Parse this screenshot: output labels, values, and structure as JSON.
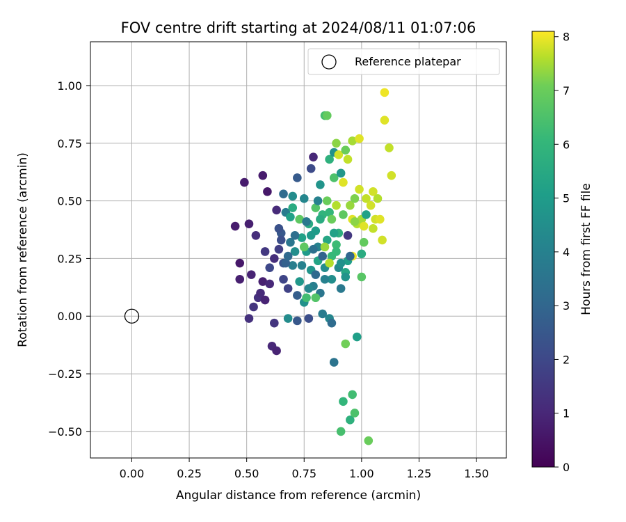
{
  "chart_data": {
    "type": "scatter",
    "title": "FOV centre drift starting at 2024/08/11 01:07:06",
    "xlabel": "Angular distance from reference (arcmin)",
    "ylabel": "Rotation from reference (arcmin)",
    "xlim": [
      -0.18,
      1.63
    ],
    "ylim": [
      -0.615,
      1.19
    ],
    "xticks": [
      0.0,
      0.25,
      0.5,
      0.75,
      1.0,
      1.25,
      1.5
    ],
    "yticks": [
      -0.5,
      -0.25,
      0.0,
      0.25,
      0.5,
      0.75,
      1.0
    ],
    "xtick_labels": [
      "0.00",
      "0.25",
      "0.50",
      "0.75",
      "1.00",
      "1.25",
      "1.50"
    ],
    "ytick_labels": [
      "−0.50",
      "−0.25",
      "0.00",
      "0.25",
      "0.50",
      "0.75",
      "1.00"
    ],
    "grid": true,
    "legend": {
      "position": "top-right",
      "label": "Reference platepar"
    },
    "reference_point": {
      "x": 0.0,
      "y": 0.0
    },
    "colorbar": {
      "label": "Hours from first FF file",
      "colormap": "viridis",
      "range": [
        0,
        8.1
      ],
      "ticks": [
        0,
        1,
        2,
        3,
        4,
        5,
        6,
        7,
        8
      ],
      "tick_labels": [
        "0",
        "1",
        "2",
        "3",
        "4",
        "5",
        "6",
        "7",
        "8"
      ]
    },
    "points": [
      [
        0.45,
        0.39,
        0.7
      ],
      [
        0.47,
        0.23,
        0.6
      ],
      [
        0.47,
        0.16,
        0.8
      ],
      [
        0.49,
        0.58,
        0.7
      ],
      [
        0.51,
        0.4,
        0.8
      ],
      [
        0.51,
        -0.01,
        1.3
      ],
      [
        0.52,
        0.18,
        0.9
      ],
      [
        0.53,
        0.04,
        1.4
      ],
      [
        0.54,
        0.35,
        1.2
      ],
      [
        0.55,
        0.08,
        1.3
      ],
      [
        0.56,
        0.1,
        1.1
      ],
      [
        0.57,
        0.61,
        0.7
      ],
      [
        0.57,
        0.15,
        0.8
      ],
      [
        0.58,
        0.07,
        0.9
      ],
      [
        0.58,
        0.28,
        1.5
      ],
      [
        0.59,
        0.54,
        0.6
      ],
      [
        0.6,
        0.14,
        1.0
      ],
      [
        0.61,
        -0.13,
        1.0
      ],
      [
        0.62,
        -0.03,
        1.4
      ],
      [
        0.63,
        -0.15,
        0.9
      ],
      [
        0.63,
        0.46,
        1.1
      ],
      [
        0.64,
        0.29,
        1.7
      ],
      [
        0.65,
        0.36,
        2.5
      ],
      [
        0.66,
        0.53,
        3.2
      ],
      [
        0.66,
        0.23,
        2.4
      ],
      [
        0.67,
        0.45,
        3.8
      ],
      [
        0.68,
        -0.01,
        4.4
      ],
      [
        0.68,
        0.12,
        1.8
      ],
      [
        0.69,
        0.32,
        3.6
      ],
      [
        0.7,
        0.47,
        5.6
      ],
      [
        0.7,
        0.22,
        3.9
      ],
      [
        0.71,
        0.28,
        4.5
      ],
      [
        0.72,
        0.6,
        2.6
      ],
      [
        0.72,
        -0.02,
        2.5
      ],
      [
        0.73,
        0.42,
        6.8
      ],
      [
        0.73,
        0.15,
        4.8
      ],
      [
        0.74,
        0.34,
        5.2
      ],
      [
        0.75,
        0.51,
        4.2
      ],
      [
        0.75,
        0.06,
        4.6
      ],
      [
        0.76,
        0.08,
        6.3
      ],
      [
        0.76,
        0.28,
        4.9
      ],
      [
        0.77,
        0.4,
        5.5
      ],
      [
        0.77,
        -0.01,
        2.2
      ],
      [
        0.78,
        0.64,
        2.1
      ],
      [
        0.78,
        0.2,
        4.7
      ],
      [
        0.79,
        0.69,
        1.0
      ],
      [
        0.79,
        0.13,
        3.9
      ],
      [
        0.8,
        0.37,
        5.0
      ],
      [
        0.8,
        0.47,
        6.6
      ],
      [
        0.81,
        0.24,
        5.3
      ],
      [
        0.81,
        0.3,
        4.1
      ],
      [
        0.82,
        0.57,
        4.7
      ],
      [
        0.82,
        0.1,
        3.6
      ],
      [
        0.83,
        0.01,
        3.8
      ],
      [
        0.83,
        0.44,
        5.9
      ],
      [
        0.84,
        0.87,
        6.4
      ],
      [
        0.84,
        0.21,
        4.4
      ],
      [
        0.85,
        0.5,
        7.0
      ],
      [
        0.85,
        0.33,
        5.4
      ],
      [
        0.85,
        0.87,
        6.9
      ],
      [
        0.86,
        0.68,
        5.8
      ],
      [
        0.86,
        -0.01,
        4.2
      ],
      [
        0.87,
        0.26,
        6.1
      ],
      [
        0.87,
        0.16,
        4.5
      ],
      [
        0.87,
        -0.03,
        3.2
      ],
      [
        0.88,
        0.71,
        4.6
      ],
      [
        0.88,
        0.6,
        6.5
      ],
      [
        0.88,
        -0.2,
        3.5
      ],
      [
        0.89,
        0.75,
        7.3
      ],
      [
        0.89,
        0.48,
        7.6
      ],
      [
        0.9,
        0.36,
        5.7
      ],
      [
        0.9,
        0.21,
        4.3
      ],
      [
        0.9,
        0.7,
        7.8
      ],
      [
        0.91,
        0.62,
        4.8
      ],
      [
        0.91,
        0.12,
        3.7
      ],
      [
        0.92,
        0.58,
        7.9
      ],
      [
        0.92,
        -0.37,
        6.0
      ],
      [
        0.92,
        0.44,
        6.8
      ],
      [
        0.93,
        -0.12,
        7.1
      ],
      [
        0.93,
        0.72,
        7.0
      ],
      [
        0.94,
        0.68,
        7.7
      ],
      [
        0.94,
        0.24,
        5.1
      ],
      [
        0.94,
        0.35,
        1.5
      ],
      [
        0.95,
        -0.45,
        5.8
      ],
      [
        0.95,
        0.48,
        7.4
      ],
      [
        0.96,
        -0.34,
        6.3
      ],
      [
        0.96,
        0.42,
        7.9
      ],
      [
        0.96,
        0.26,
        8.0
      ],
      [
        0.96,
        0.76,
        7.5
      ],
      [
        0.97,
        -0.42,
        6.5
      ],
      [
        0.97,
        0.51,
        7.2
      ],
      [
        0.98,
        -0.09,
        5.1
      ],
      [
        0.98,
        0.4,
        7.6
      ],
      [
        0.99,
        0.77,
        7.9
      ],
      [
        0.99,
        0.55,
        7.8
      ],
      [
        1.0,
        0.42,
        7.5
      ],
      [
        1.0,
        0.17,
        6.7
      ],
      [
        1.0,
        0.27,
        5.6
      ],
      [
        1.01,
        0.32,
        6.9
      ],
      [
        1.01,
        0.39,
        7.9
      ],
      [
        1.02,
        0.51,
        7.7
      ],
      [
        1.02,
        0.44,
        5.2
      ],
      [
        1.03,
        -0.54,
        7.0
      ],
      [
        1.04,
        0.48,
        7.8
      ],
      [
        1.05,
        0.54,
        7.8
      ],
      [
        1.05,
        0.38,
        7.7
      ],
      [
        1.06,
        0.42,
        7.8
      ],
      [
        1.07,
        0.51,
        7.6
      ],
      [
        1.08,
        0.42,
        7.9
      ],
      [
        1.09,
        0.33,
        7.8
      ],
      [
        1.1,
        0.85,
        7.9
      ],
      [
        1.1,
        0.97,
        8.0
      ],
      [
        1.12,
        0.73,
        7.7
      ],
      [
        1.13,
        0.61,
        7.8
      ],
      [
        0.91,
        -0.5,
        6.4
      ],
      [
        0.67,
        0.23,
        2.8
      ],
      [
        0.69,
        0.43,
        5.2
      ],
      [
        0.71,
        0.35,
        3.3
      ],
      [
        0.74,
        0.22,
        4.0
      ],
      [
        0.76,
        0.41,
        3.7
      ],
      [
        0.78,
        0.35,
        4.9
      ],
      [
        0.79,
        0.29,
        3.4
      ],
      [
        0.8,
        0.18,
        3.1
      ],
      [
        0.82,
        0.42,
        5.6
      ],
      [
        0.83,
        0.26,
        2.9
      ],
      [
        0.84,
        0.16,
        4.0
      ],
      [
        0.86,
        0.45,
        6.0
      ],
      [
        0.88,
        0.36,
        5.2
      ],
      [
        0.89,
        0.31,
        6.2
      ],
      [
        0.91,
        0.23,
        4.6
      ],
      [
        0.93,
        0.19,
        5.4
      ],
      [
        0.95,
        0.26,
        3.0
      ],
      [
        0.64,
        0.38,
        2.3
      ],
      [
        0.66,
        0.16,
        1.9
      ],
      [
        0.7,
        0.52,
        4.4
      ],
      [
        0.72,
        0.09,
        2.7
      ],
      [
        0.75,
        0.3,
        6.8
      ],
      [
        0.77,
        0.12,
        4.2
      ],
      [
        0.8,
        0.08,
        6.6
      ],
      [
        0.81,
        0.5,
        4.0
      ],
      [
        0.84,
        0.3,
        7.4
      ],
      [
        0.86,
        0.23,
        7.6
      ],
      [
        0.87,
        0.42,
        7.0
      ],
      [
        0.89,
        0.28,
        6.1
      ],
      [
        0.93,
        0.17,
        4.7
      ],
      [
        0.97,
        0.41,
        7.3
      ],
      [
        0.62,
        0.25,
        1.2
      ],
      [
        0.6,
        0.21,
        2.0
      ],
      [
        0.65,
        0.33,
        2.2
      ],
      [
        0.68,
        0.26,
        3.1
      ]
    ]
  }
}
